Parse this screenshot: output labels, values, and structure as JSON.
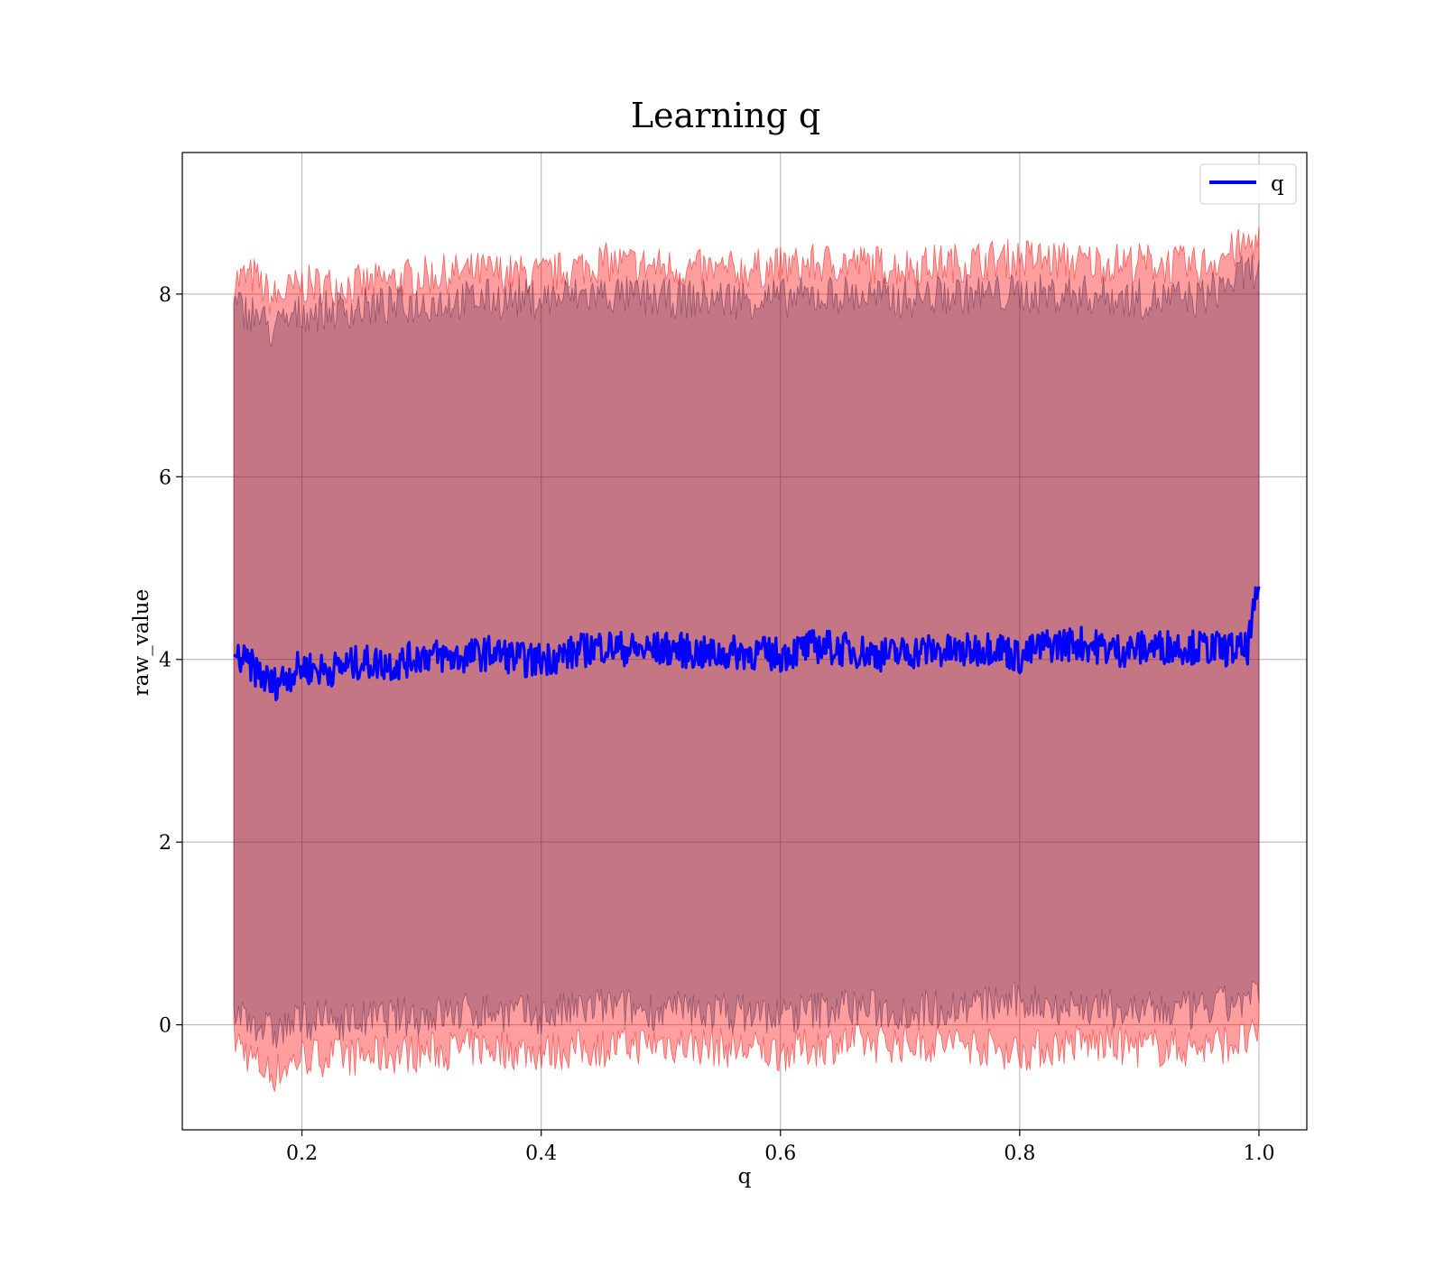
{
  "chart_data": {
    "type": "line",
    "title": "Learning q",
    "xlabel": "q",
    "ylabel": "raw_value",
    "xlim": [
      0.1,
      1.04
    ],
    "ylim": [
      -1.15,
      9.55
    ],
    "xticks": [
      0.2,
      0.4,
      0.6,
      0.8,
      1.0
    ],
    "xtick_labels": [
      "0.2",
      "0.4",
      "0.6",
      "0.8",
      "1.0"
    ],
    "yticks": [
      0,
      2,
      4,
      6,
      8
    ],
    "ytick_labels": [
      "0",
      "2",
      "4",
      "6",
      "8"
    ],
    "grid": true,
    "legend": {
      "position": "top-right",
      "entries": [
        "q"
      ]
    },
    "series": [
      {
        "name": "q",
        "color": "#0000ff",
        "x": [
          0.143,
          0.16,
          0.175,
          0.2,
          0.22,
          0.25,
          0.28,
          0.3,
          0.33,
          0.36,
          0.39,
          0.42,
          0.45,
          0.48,
          0.51,
          0.54,
          0.57,
          0.6,
          0.63,
          0.66,
          0.69,
          0.72,
          0.75,
          0.78,
          0.8,
          0.82,
          0.85,
          0.88,
          0.9,
          0.93,
          0.96,
          0.99,
          1.0
        ],
        "values": [
          4.05,
          3.9,
          3.72,
          3.92,
          3.88,
          3.97,
          3.95,
          4.05,
          4.02,
          4.08,
          3.98,
          4.05,
          4.15,
          4.1,
          4.12,
          4.05,
          4.08,
          4.05,
          4.15,
          4.1,
          4.05,
          4.1,
          4.08,
          4.15,
          4.02,
          4.15,
          4.18,
          4.1,
          4.12,
          4.15,
          4.12,
          4.1,
          4.8
        ]
      }
    ],
    "bands": [
      {
        "color": "#ff0000",
        "opacity": 0.38,
        "x": [
          0.143,
          0.16,
          0.175,
          0.2,
          0.25,
          0.3,
          0.35,
          0.4,
          0.45,
          0.5,
          0.55,
          0.6,
          0.65,
          0.7,
          0.75,
          0.8,
          0.85,
          0.9,
          0.95,
          1.0
        ],
        "upper": [
          8.15,
          8.2,
          7.95,
          8.1,
          8.1,
          8.2,
          8.25,
          8.2,
          8.35,
          8.3,
          8.25,
          8.3,
          8.35,
          8.3,
          8.35,
          8.4,
          8.35,
          8.35,
          8.3,
          8.6
        ],
        "lower": [
          -0.15,
          -0.4,
          -0.55,
          -0.35,
          -0.35,
          -0.3,
          -0.25,
          -0.3,
          -0.25,
          -0.2,
          -0.25,
          -0.3,
          -0.2,
          -0.2,
          -0.2,
          -0.3,
          -0.2,
          -0.25,
          -0.25,
          -0.15
        ]
      },
      {
        "color": "#3a1a4a",
        "opacity": 0.3,
        "x": [
          0.143,
          0.16,
          0.175,
          0.2,
          0.25,
          0.3,
          0.35,
          0.4,
          0.45,
          0.5,
          0.55,
          0.6,
          0.65,
          0.7,
          0.75,
          0.8,
          0.85,
          0.9,
          0.95,
          1.0
        ],
        "upper": [
          7.85,
          7.8,
          7.6,
          7.8,
          7.85,
          7.9,
          7.95,
          7.95,
          8.0,
          7.95,
          7.95,
          7.95,
          8.0,
          7.95,
          8.0,
          8.0,
          8.0,
          7.95,
          7.95,
          8.3
        ],
        "lower": [
          0.15,
          0.05,
          -0.1,
          0.05,
          0.05,
          0.1,
          0.15,
          0.1,
          0.2,
          0.15,
          0.15,
          0.1,
          0.2,
          0.15,
          0.2,
          0.25,
          0.2,
          0.15,
          0.15,
          0.3
        ]
      }
    ]
  }
}
